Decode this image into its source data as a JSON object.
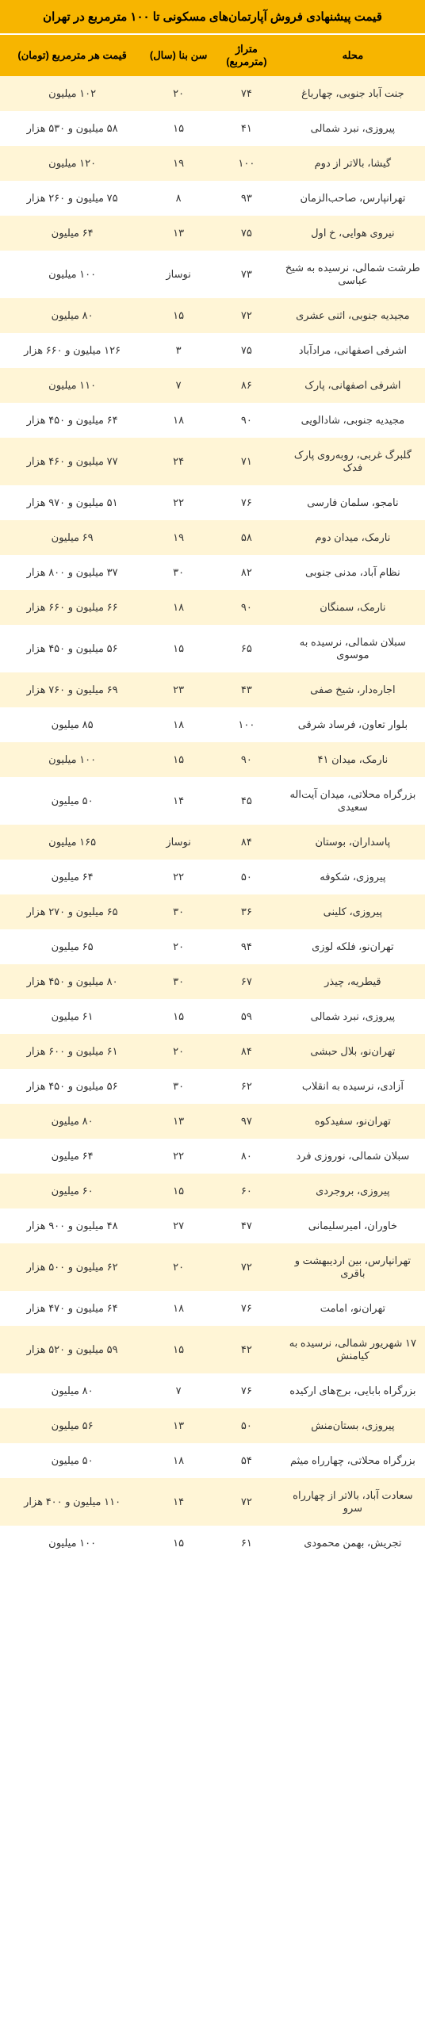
{
  "title": "قیمت پیشنهادی فروش آپارتمان‌های مسکونی تا ۱۰۰ مترمربع در تهران",
  "headers": {
    "area": "محله",
    "size": "متراژ (مترمربع)",
    "age": "سن بنا (سال)",
    "price": "قیمت هر مترمربع (تومان)"
  },
  "rows": [
    {
      "area": "جنت آباد جنوبی، چهارباغ",
      "size": "۷۴",
      "age": "۲۰",
      "price": "۱۰۲ میلیون"
    },
    {
      "area": "پیروزی، نبرد شمالی",
      "size": "۴۱",
      "age": "۱۵",
      "price": "۵۸ میلیون و ۵۳۰ هزار"
    },
    {
      "area": "گیشا، بالاتر از دوم",
      "size": "۱۰۰",
      "age": "۱۹",
      "price": "۱۲۰ میلیون"
    },
    {
      "area": "تهرانپارس، صاحب‌الزمان",
      "size": "۹۳",
      "age": "۸",
      "price": "۷۵ میلیون و ۲۶۰ هزار"
    },
    {
      "area": "نیروی هوایی، خ اول",
      "size": "۷۵",
      "age": "۱۳",
      "price": "۶۴ میلیون"
    },
    {
      "area": "طرشت شمالی، نرسیده به شیخ عباسی",
      "size": "۷۳",
      "age": "نوساز",
      "price": "۱۰۰ میلیون"
    },
    {
      "area": "مجیدیه جنوبی، اثنی عشری",
      "size": "۷۲",
      "age": "۱۵",
      "price": "۸۰ میلیون"
    },
    {
      "area": "اشرفی اصفهانی، مرادآباد",
      "size": "۷۵",
      "age": "۳",
      "price": "۱۲۶ میلیون و ۶۶۰ هزار"
    },
    {
      "area": "اشرفی اصفهانی، پارک",
      "size": "۸۶",
      "age": "۷",
      "price": "۱۱۰ میلیون"
    },
    {
      "area": "مجیدیه جنوبی، شادالویی",
      "size": "۹۰",
      "age": "۱۸",
      "price": "۶۴ میلیون و ۴۵۰ هزار"
    },
    {
      "area": "گلبرگ غربی، روبه‌روی پارک فدک",
      "size": "۷۱",
      "age": "۲۴",
      "price": "۷۷ میلیون و ۴۶۰ هزار"
    },
    {
      "area": "نامجو، سلمان فارسی",
      "size": "۷۶",
      "age": "۲۲",
      "price": "۵۱ میلیون و ۹۷۰ هزار"
    },
    {
      "area": "نارمک، میدان دوم",
      "size": "۵۸",
      "age": "۱۹",
      "price": "۶۹ میلیون"
    },
    {
      "area": "نظام آباد، مدنی جنوبی",
      "size": "۸۲",
      "age": "۳۰",
      "price": "۳۷ میلیون و ۸۰۰ هزار"
    },
    {
      "area": "نارمک، سمنگان",
      "size": "۹۰",
      "age": "۱۸",
      "price": "۶۶ میلیون و ۶۶۰ هزار"
    },
    {
      "area": "سبلان شمالی، نرسیده به موسوی",
      "size": "۶۵",
      "age": "۱۵",
      "price": "۵۶ میلیون و ۴۵۰ هزار"
    },
    {
      "area": "اجاره‌دار، شیخ صفی",
      "size": "۴۳",
      "age": "۲۳",
      "price": "۶۹ میلیون و ۷۶۰ هزار"
    },
    {
      "area": "بلوار تعاون، فرساد شرقی",
      "size": "۱۰۰",
      "age": "۱۸",
      "price": "۸۵ میلیون"
    },
    {
      "area": "نارمک، میدان ۴۱",
      "size": "۹۰",
      "age": "۱۵",
      "price": "۱۰۰ میلیون"
    },
    {
      "area": "بزرگراه محلاتی، میدان آیت‌اله سعیدی",
      "size": "۴۵",
      "age": "۱۴",
      "price": "۵۰ میلیون"
    },
    {
      "area": "پاسداران، بوستان",
      "size": "۸۴",
      "age": "نوساز",
      "price": "۱۶۵ میلیون"
    },
    {
      "area": "پیروزی، شکوفه",
      "size": "۵۰",
      "age": "۲۲",
      "price": "۶۴ میلیون"
    },
    {
      "area": "پیروزی، کلینی",
      "size": "۳۶",
      "age": "۳۰",
      "price": "۶۵ میلیون و ۲۷۰ هزار"
    },
    {
      "area": "تهران‌نو، فلکه لوزی",
      "size": "۹۴",
      "age": "۲۰",
      "price": "۶۵ میلیون"
    },
    {
      "area": "قیطریه، چیذر",
      "size": "۶۷",
      "age": "۳۰",
      "price": "۸۰ میلیون و ۴۵۰ هزار"
    },
    {
      "area": "پیروزی، نبرد شمالی",
      "size": "۵۹",
      "age": "۱۵",
      "price": "۶۱ میلیون"
    },
    {
      "area": "تهران‌نو، بلال حبشی",
      "size": "۸۴",
      "age": "۲۰",
      "price": "۶۱ میلیون و ۶۰۰ هزار"
    },
    {
      "area": "آزادی، نرسیده به انقلاب",
      "size": "۶۲",
      "age": "۳۰",
      "price": "۵۶ میلیون و ۴۵۰ هزار"
    },
    {
      "area": "تهران‌نو، سفیدکوه",
      "size": "۹۷",
      "age": "۱۳",
      "price": "۸۰ میلیون"
    },
    {
      "area": "سبلان شمالی، نوروزی فرد",
      "size": "۸۰",
      "age": "۲۲",
      "price": "۶۴ میلیون"
    },
    {
      "area": "پیروزی، بروجردی",
      "size": "۶۰",
      "age": "۱۵",
      "price": "۶۰ میلیون"
    },
    {
      "area": "خاوران، امیرسلیمانی",
      "size": "۴۷",
      "age": "۲۷",
      "price": "۴۸ میلیون و ۹۰۰ هزار"
    },
    {
      "area": "تهرانپارس، بین اردیبهشت و باقری",
      "size": "۷۲",
      "age": "۲۰",
      "price": "۶۲ میلیون و ۵۰۰ هزار"
    },
    {
      "area": "تهران‌نو، امامت",
      "size": "۷۶",
      "age": "۱۸",
      "price": "۶۴ میلیون و ۴۷۰ هزار"
    },
    {
      "area": "۱۷ شهریور شمالی، نرسیده به کیامنش",
      "size": "۴۲",
      "age": "۱۵",
      "price": "۵۹ میلیون و ۵۲۰ هزار"
    },
    {
      "area": "بزرگراه بابایی، برج‌های ارکیده",
      "size": "۷۶",
      "age": "۷",
      "price": "۸۰ میلیون"
    },
    {
      "area": "پیروزی، بستان‌منش",
      "size": "۵۰",
      "age": "۱۳",
      "price": "۵۶ میلیون"
    },
    {
      "area": "بزرگراه محلاتی، چهارراه میثم",
      "size": "۵۴",
      "age": "۱۸",
      "price": "۵۰ میلیون"
    },
    {
      "area": "سعادت آباد، بالاتر از چهارراه سرو",
      "size": "۷۲",
      "age": "۱۴",
      "price": "۱۱۰ میلیون و ۴۰۰ هزار"
    },
    {
      "area": "تجریش، بهمن محمودی",
      "size": "۶۱",
      "age": "۱۵",
      "price": "۱۰۰ میلیون"
    }
  ],
  "style": {
    "header_bg": "#f7b500",
    "row_odd_bg": "#fff5d6",
    "row_even_bg": "#ffffff",
    "text_color": "#333333",
    "title_fontsize": 15,
    "header_fontsize": 13,
    "cell_fontsize": 13
  }
}
